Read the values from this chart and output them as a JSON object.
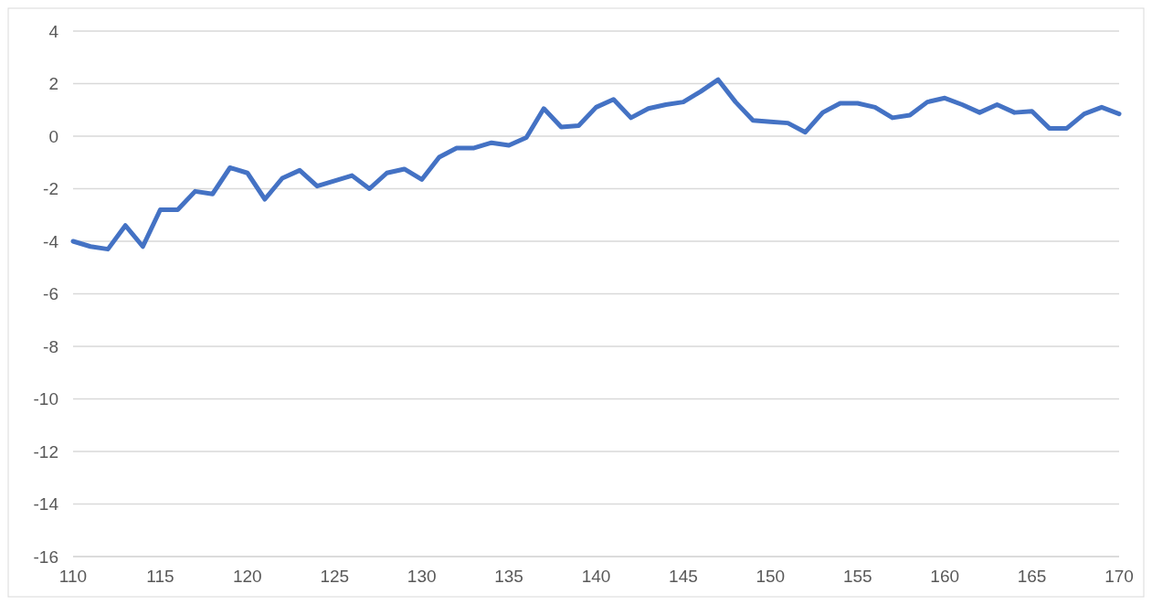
{
  "chart_data": {
    "type": "line",
    "xlim": [
      110,
      170
    ],
    "xticks": [
      110,
      115,
      120,
      125,
      130,
      135,
      140,
      145,
      150,
      155,
      160,
      165,
      170
    ],
    "ylim": [
      -16,
      4
    ],
    "yticks": [
      -16,
      -14,
      -12,
      -10,
      -8,
      -6,
      -4,
      -2,
      0,
      2,
      4
    ],
    "grid": "y",
    "marker": "none",
    "line_style": "solid",
    "x": [
      110,
      111,
      112,
      113,
      114,
      115,
      116,
      117,
      118,
      119,
      120,
      121,
      122,
      123,
      124,
      125,
      126,
      127,
      128,
      129,
      130,
      131,
      132,
      133,
      134,
      135,
      136,
      137,
      138,
      139,
      140,
      141,
      142,
      143,
      144,
      145,
      146,
      147,
      148,
      149,
      150,
      151,
      152,
      153,
      154,
      155,
      156,
      157,
      158,
      159,
      160,
      161,
      162,
      163,
      164,
      165,
      166,
      167,
      168,
      169,
      170
    ],
    "series": [
      {
        "color": "#4472c4",
        "values": [
          -4.0,
          -4.2,
          -4.3,
          -3.4,
          -4.2,
          -2.8,
          -2.8,
          -2.1,
          -2.2,
          -1.2,
          -1.4,
          -2.4,
          -1.6,
          -1.3,
          -1.9,
          -1.7,
          -1.5,
          -2.0,
          -1.4,
          -1.25,
          -1.65,
          -0.8,
          -0.45,
          -0.45,
          -0.25,
          -0.35,
          -0.05,
          1.05,
          0.35,
          0.4,
          1.1,
          1.4,
          0.7,
          1.05,
          1.2,
          1.3,
          1.7,
          2.15,
          1.3,
          0.6,
          0.55,
          0.5,
          0.15,
          0.9,
          1.25,
          1.25,
          1.1,
          0.7,
          0.8,
          1.3,
          1.45,
          1.2,
          0.9,
          1.2,
          0.9,
          0.95,
          0.3,
          0.3,
          0.85,
          1.1,
          0.85
        ]
      }
    ]
  }
}
